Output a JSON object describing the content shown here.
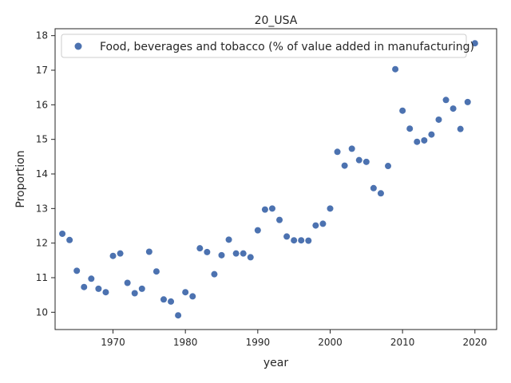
{
  "chart_data": {
    "type": "scatter",
    "title": "20_USA",
    "xlabel": "year",
    "ylabel": "Proportion",
    "xlim": [
      1962,
      2023
    ],
    "ylim": [
      9.5,
      18.2
    ],
    "xticks": [
      1970,
      1980,
      1990,
      2000,
      2010,
      2020
    ],
    "yticks": [
      10,
      11,
      12,
      13,
      14,
      15,
      16,
      17,
      18
    ],
    "grid": false,
    "legend_position": "top-left",
    "colors": {
      "series": "#4c72b0",
      "axis": "#262626"
    },
    "series": [
      {
        "name": "Food, beverages and tobacco (% of value added in manufacturing)",
        "x": [
          1963,
          1964,
          1965,
          1966,
          1967,
          1968,
          1969,
          1970,
          1971,
          1972,
          1973,
          1974,
          1975,
          1976,
          1977,
          1978,
          1979,
          1980,
          1981,
          1982,
          1983,
          1984,
          1985,
          1986,
          1987,
          1988,
          1989,
          1990,
          1991,
          1992,
          1993,
          1994,
          1995,
          1996,
          1997,
          1998,
          1999,
          2000,
          2001,
          2002,
          2003,
          2004,
          2005,
          2006,
          2007,
          2008,
          2009,
          2010,
          2011,
          2012,
          2013,
          2014,
          2015,
          2016,
          2017,
          2018,
          2019,
          2020
        ],
        "y": [
          12.27,
          12.09,
          11.2,
          10.73,
          10.97,
          10.68,
          10.58,
          11.63,
          11.7,
          10.85,
          10.55,
          10.68,
          11.75,
          11.18,
          10.37,
          10.31,
          9.91,
          10.58,
          10.46,
          11.85,
          11.74,
          11.1,
          11.65,
          12.1,
          11.7,
          11.7,
          11.59,
          12.37,
          12.97,
          13.0,
          12.67,
          12.19,
          12.08,
          12.08,
          12.07,
          12.51,
          12.56,
          13.0,
          14.64,
          14.24,
          14.73,
          14.4,
          14.35,
          13.59,
          13.44,
          14.23,
          17.03,
          15.83,
          15.31,
          14.93,
          14.97,
          15.14,
          15.57,
          16.14,
          15.89,
          15.3,
          16.08,
          17.78
        ]
      }
    ]
  }
}
